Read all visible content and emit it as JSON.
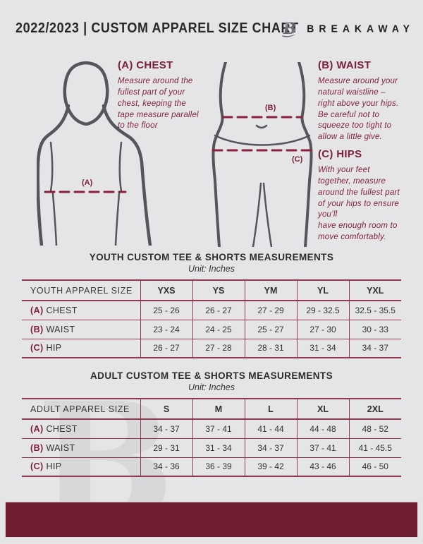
{
  "header": {
    "title": "2022/2023  |  CUSTOM APPAREL SIZE CHART",
    "brand": "BREAKAWAY",
    "logo_letter": "B"
  },
  "guide": {
    "chest": {
      "marker": "(A)",
      "heading": "(A) CHEST",
      "description": "Measure around the\nfullest part of your\nchest, keeping the\ntape measure parallel\nto the floor"
    },
    "waist": {
      "marker": "(B)",
      "heading": "(B) WAIST",
      "description": "Measure around your\nnatural waistline –\nright above your hips.\nBe careful not to\nsqueeze too tight to\nallow a little give."
    },
    "hips": {
      "marker": "(C)",
      "heading": "(C) HIPS",
      "description": "With your feet\ntogether, measure\naround the fullest part\nof your hips to ensure\nyou’ll\nhave enough room to\nmove comfortably."
    }
  },
  "youth": {
    "title": "YOUTH CUSTOM TEE & SHORTS MEASUREMENTS",
    "unit": "Unit: Inches",
    "columns": [
      "YOUTH APPAREL SIZE",
      "YXS",
      "YS",
      "YM",
      "YL",
      "YXL"
    ],
    "rows": [
      {
        "marker": "(A)",
        "label": "CHEST",
        "values": [
          "25 - 26",
          "26 - 27",
          "27 - 29",
          "29 - 32.5",
          "32.5 - 35.5"
        ]
      },
      {
        "marker": "(B)",
        "label": "WAIST",
        "values": [
          "23 - 24",
          "24 - 25",
          "25 - 27",
          "27 - 30",
          "30 - 33"
        ]
      },
      {
        "marker": "(C)",
        "label": "HIP",
        "values": [
          "26 - 27",
          "27 - 28",
          "28 - 31",
          "31 - 34",
          "34 - 37"
        ]
      }
    ]
  },
  "adult": {
    "title": "ADULT CUSTOM TEE & SHORTS MEASUREMENTS",
    "unit": "Unit: Inches",
    "columns": [
      "ADULT APPAREL SIZE",
      "S",
      "M",
      "L",
      "XL",
      "2XL"
    ],
    "rows": [
      {
        "marker": "(A)",
        "label": "CHEST",
        "values": [
          "34 - 37",
          "37 - 41",
          "41 - 44",
          "44 - 48",
          "48 - 52"
        ]
      },
      {
        "marker": "(B)",
        "label": "WAIST",
        "values": [
          "29 - 31",
          "31 - 34",
          "34 - 37",
          "37 - 41",
          "41 - 45.5"
        ]
      },
      {
        "marker": "(C)",
        "label": "HIP",
        "values": [
          "34 - 36",
          "36 - 39",
          "39 - 42",
          "43 - 46",
          "46 - 50"
        ]
      }
    ]
  },
  "watermark_letter": "B",
  "colors": {
    "accent": "#7a1f36",
    "table_line": "#93394e",
    "footer_bar": "#701d31",
    "background": "#e5e5e7",
    "figure_outline": "#55565a",
    "dashed_line": "#8b2040",
    "text_dark": "#2e2e30"
  }
}
